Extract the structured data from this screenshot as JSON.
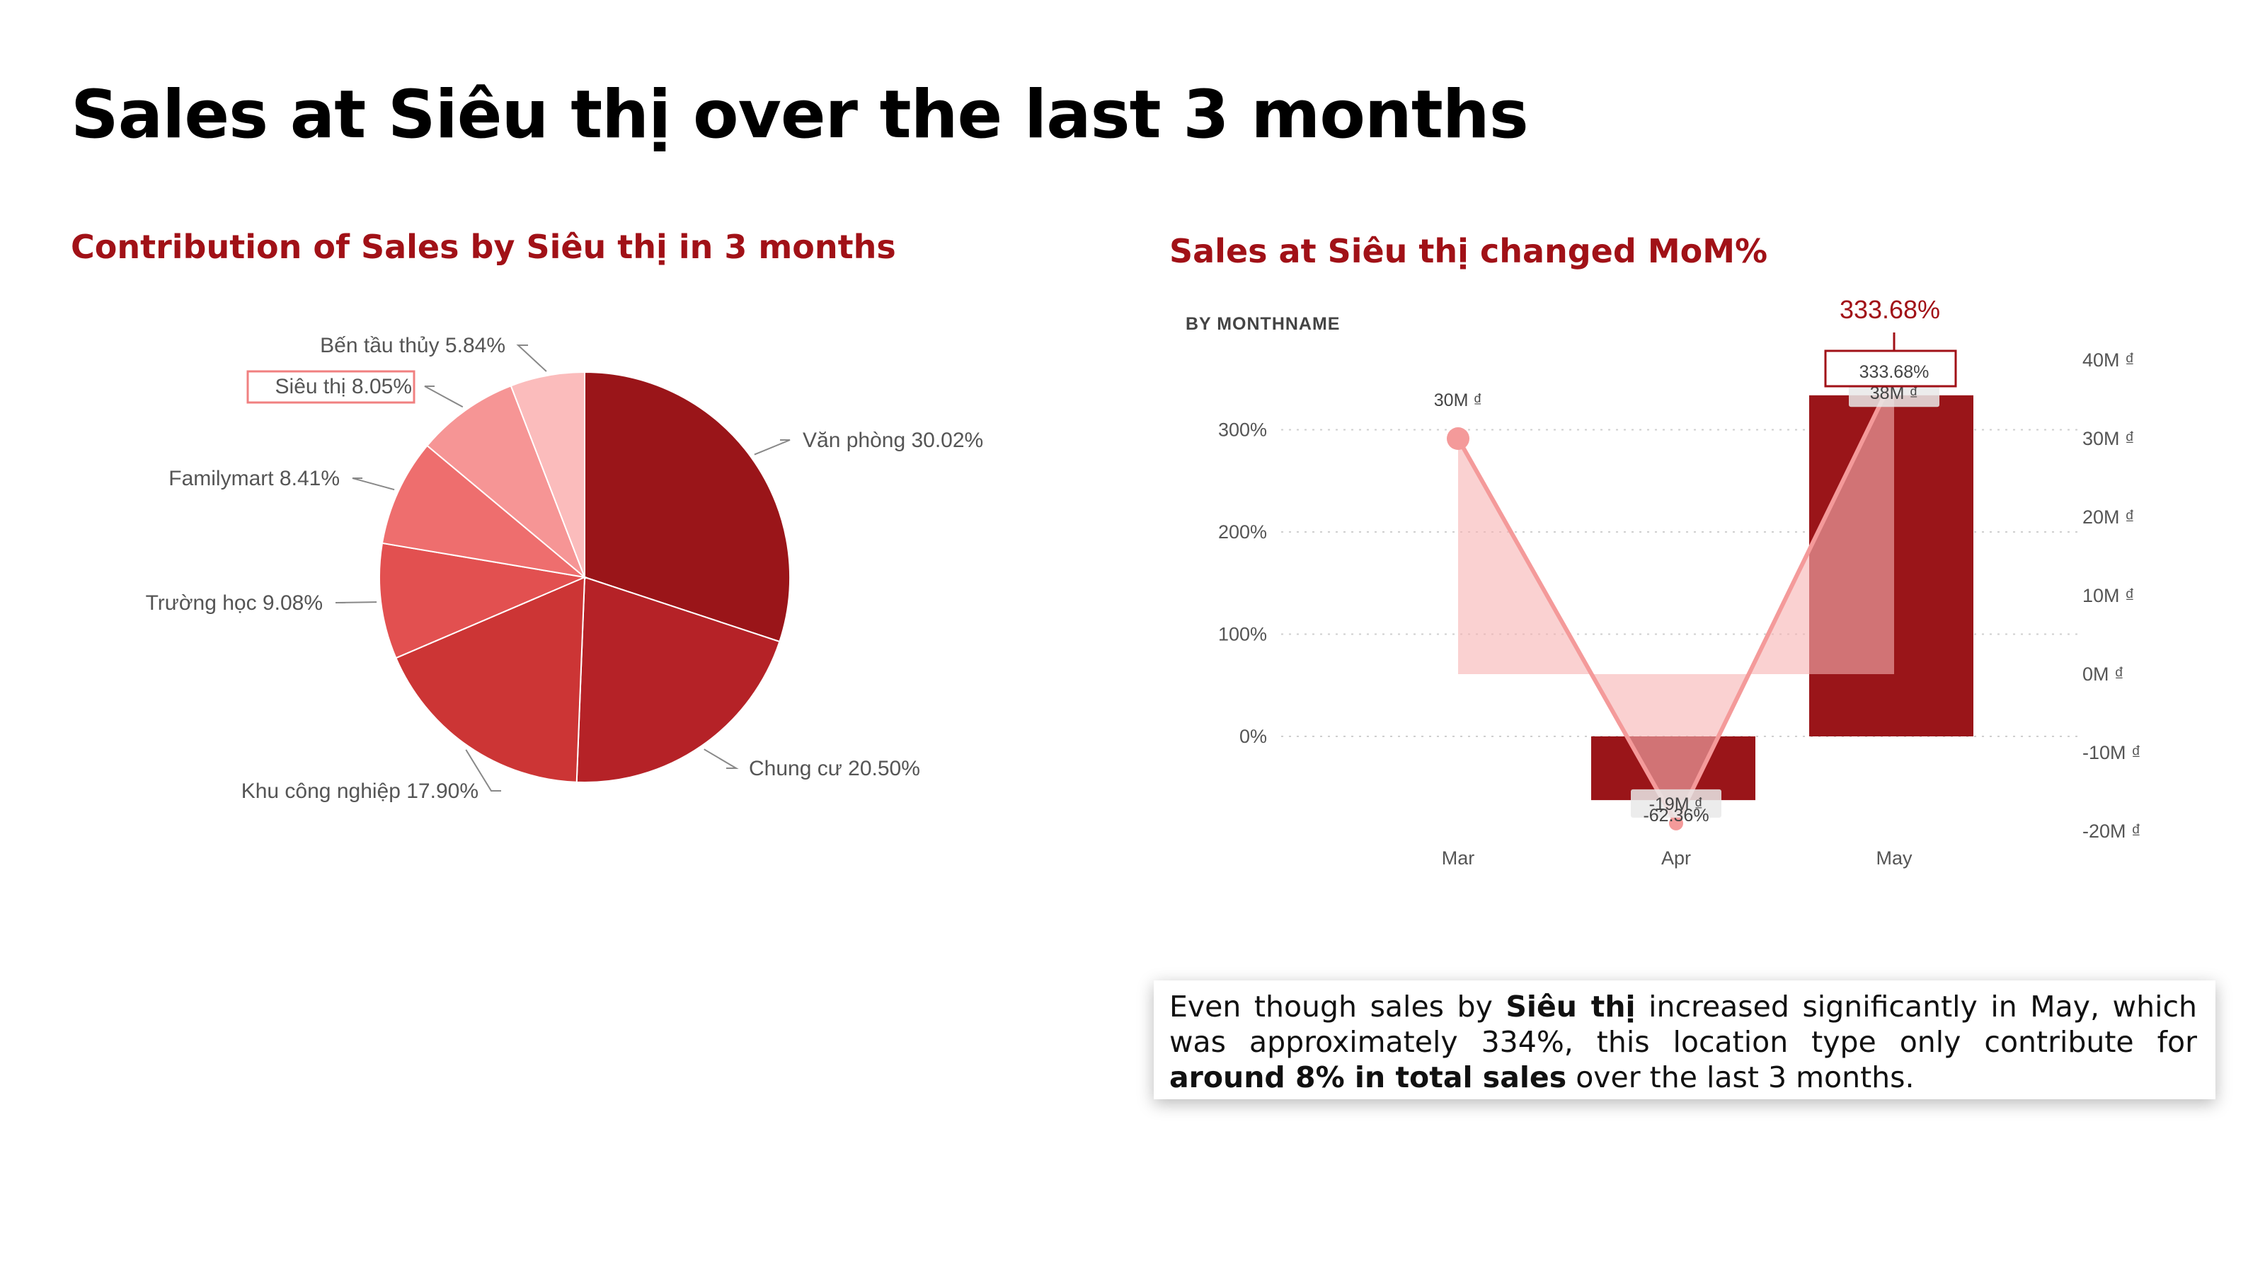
{
  "page": {
    "title": "Sales at Siêu thị over the last 3 months"
  },
  "pie": {
    "title": "Contribution of Sales by Siêu thị in 3 months"
  },
  "combo": {
    "title": "Sales at Siêu thị changed MoM%",
    "axis_caption": "BY MONTHNAME",
    "top_annotation": "333.68%"
  },
  "callout": {
    "part1": "Even though sales by ",
    "part2": "Siêu thị",
    "part3": " increased significantly in May, which was approximately 334%, this location type only contribute for ",
    "part4": "around 8% in total sales",
    "part5": " over the last 3 months."
  },
  "colors": {
    "accent": "#a11117",
    "highlight_border": "#f08080"
  },
  "chart_data": [
    {
      "type": "pie",
      "title": "Contribution of Sales by Siêu thị in 3 months",
      "slices": [
        {
          "label": "Văn phòng",
          "value": 30.02,
          "text": "Văn phòng 30.02%",
          "color": "#9a1519"
        },
        {
          "label": "Chung cư",
          "value": 20.5,
          "text": "Chung cư 20.50%",
          "color": "#b52227"
        },
        {
          "label": "Khu công nghiệp",
          "value": 17.9,
          "text": "Khu công nghiệp 17.90%",
          "color": "#cc3535"
        },
        {
          "label": "Trường học",
          "value": 9.08,
          "text": "Trường học 9.08%",
          "color": "#e25050"
        },
        {
          "label": "Familymart",
          "value": 8.41,
          "text": "Familymart 8.41%",
          "color": "#ee6e6e"
        },
        {
          "label": "Siêu thị",
          "value": 8.05,
          "text": "Siêu thị 8.05%",
          "color": "#f69595",
          "highlight": true
        },
        {
          "label": "Bến tầu thủy",
          "value": 5.84,
          "text": "Bến tầu thủy 5.84%",
          "color": "#fbbcbc"
        }
      ]
    },
    {
      "type": "bar",
      "title": "Sales at Siêu thị changed MoM%",
      "categories": [
        "Mar",
        "Apr",
        "May"
      ],
      "series": [
        {
          "values": [
            null,
            -62.36,
            333.68
          ],
          "value_labels": [
            "",
            "-62.36%",
            "333.68%"
          ],
          "color": "#9a1519",
          "axis": "left"
        },
        {
          "values": [
            30,
            -19,
            38
          ],
          "value_labels": [
            "30M ₫",
            "-19M ₫",
            "38M ₫"
          ],
          "color": "#f49a9a",
          "axis": "right"
        }
      ],
      "left_axis": {
        "ticks": [
          "0%",
          "100%",
          "200%",
          "300%"
        ],
        "values": [
          0,
          100,
          200,
          300
        ]
      },
      "right_axis": {
        "ticks": [
          "-20M ₫",
          "-10M ₫",
          "0M ₫",
          "10M ₫",
          "20M ₫",
          "30M ₫",
          "40M ₫"
        ],
        "values": [
          -20,
          -10,
          0,
          10,
          20,
          30,
          40
        ]
      },
      "grid": true
    }
  ]
}
